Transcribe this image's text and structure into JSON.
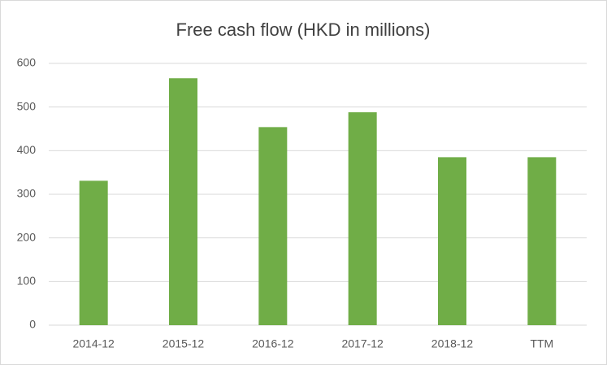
{
  "chart_data": {
    "type": "bar",
    "title": "Free cash flow (HKD in millions)",
    "categories": [
      "2014-12",
      "2015-12",
      "2016-12",
      "2017-12",
      "2018-12",
      "TTM"
    ],
    "values": [
      331,
      566,
      454,
      488,
      385,
      385
    ],
    "color": "#70ad47",
    "ylim": [
      0,
      600
    ],
    "yticks": [
      0,
      100,
      200,
      300,
      400,
      500,
      600
    ],
    "grid": true
  }
}
